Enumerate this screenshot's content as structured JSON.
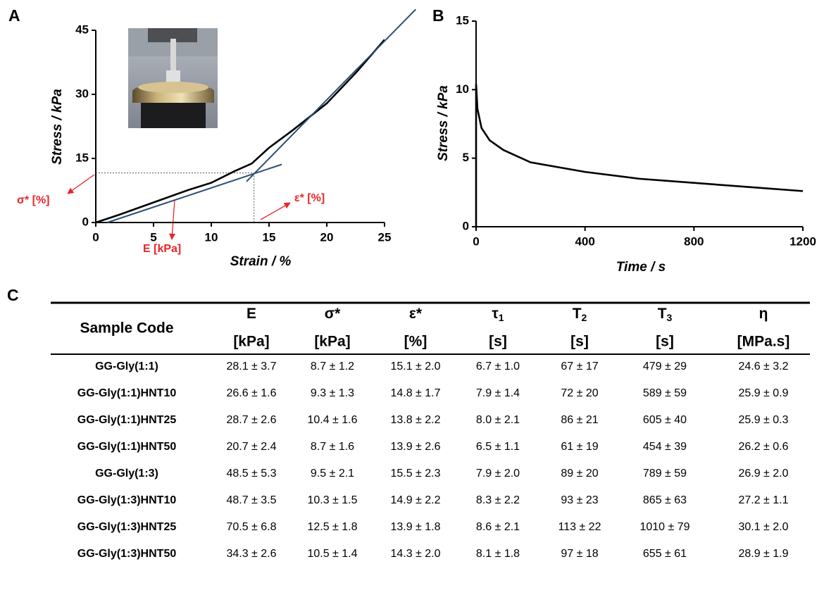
{
  "chart_data": [
    {
      "panel": "A",
      "type": "line",
      "xlabel": "Strain / %",
      "ylabel": "Stress / kPa",
      "xlim": [
        0,
        25
      ],
      "ylim": [
        0,
        45
      ],
      "xticks": [
        0,
        5,
        10,
        15,
        20,
        25
      ],
      "yticks": [
        0,
        15,
        30,
        45
      ],
      "series": [
        {
          "color": "#000000",
          "x": [
            0,
            2,
            5,
            8,
            10,
            12,
            13.5,
            15,
            17,
            20,
            22.5,
            25
          ],
          "values": [
            0,
            1.8,
            4.7,
            7.6,
            9.3,
            12,
            13.8,
            17.5,
            21.5,
            27.9,
            35,
            42.8
          ]
        },
        {
          "color": "#2e4d73",
          "x": [
            1,
            16.1
          ],
          "values": [
            0,
            13.6
          ]
        },
        {
          "color": "#2e4d73",
          "x": [
            13.05,
            27.7
          ],
          "values": [
            9.6,
            49.9
          ]
        }
      ],
      "guide": {
        "x": 13.7,
        "y": 11.6
      },
      "annotations": [
        "σ* [%]",
        "ε* [%]",
        "E [kPa]"
      ]
    },
    {
      "panel": "B",
      "type": "line",
      "xlabel": "Time / s",
      "ylabel": "Stress / kPa",
      "xlim": [
        0,
        1200
      ],
      "ylim": [
        0,
        15
      ],
      "xticks": [
        0,
        400,
        800,
        1200
      ],
      "yticks": [
        0,
        5,
        10,
        15
      ],
      "series": [
        {
          "color": "#000000",
          "x": [
            0,
            0,
            5,
            20,
            50,
            100,
            200,
            400,
            600,
            800,
            1000,
            1200
          ],
          "values": [
            0,
            10.4,
            8.6,
            7.2,
            6.3,
            5.6,
            4.7,
            4.0,
            3.5,
            3.2,
            2.9,
            2.6
          ]
        }
      ]
    }
  ],
  "table": {
    "panel": "C",
    "header": [
      "Sample Code",
      {
        "symbol": "E",
        "unit": "[kPa]"
      },
      {
        "symbol": "σ*",
        "unit": "[kPa]"
      },
      {
        "symbol": "ε*",
        "unit": "[%]"
      },
      {
        "symbol": "τ",
        "sub": "1",
        "unit": "[s]"
      },
      {
        "symbol": "T",
        "sub": "2",
        "unit": "[s]"
      },
      {
        "symbol": "T",
        "sub": "3",
        "unit": "[s]"
      },
      {
        "symbol": "η",
        "unit": "[MPa.s]"
      }
    ],
    "rows": [
      [
        "GG-Gly(1:1)",
        "28.1 ± 3.7",
        "8.7 ± 1.2",
        "15.1 ± 2.0",
        "6.7 ± 1.0",
        "67 ± 17",
        "479 ± 29",
        "24.6 ± 3.2"
      ],
      [
        "GG-Gly(1:1)HNT10",
        "26.6 ± 1.6",
        "9.3 ± 1.3",
        "14.8 ± 1.7",
        "7.9 ± 1.4",
        "72 ± 20",
        "589 ± 59",
        "25.9 ± 0.9"
      ],
      [
        "GG-Gly(1:1)HNT25",
        "28.7 ± 2.6",
        "10.4 ± 1.6",
        "13.8 ± 2.2",
        "8.0 ± 2.1",
        "86 ± 21",
        "605 ± 40",
        "25.9 ± 0.3"
      ],
      [
        "GG-Gly(1:1)HNT50",
        "20.7 ± 2.4",
        "8.7 ± 1.6",
        "13.9 ± 2.6",
        "6.5 ± 1.1",
        "61 ± 19",
        "454 ± 39",
        "26.2 ± 0.6"
      ],
      [
        "GG-Gly(1:3)",
        "48.5 ± 5.3",
        "9.5 ± 2.1",
        "15.5 ± 2.3",
        "7.9 ± 2.0",
        "89 ± 20",
        "789 ± 59",
        "26.9 ± 2.0"
      ],
      [
        "GG-Gly(1:3)HNT10",
        "48.7 ± 3.5",
        "10.3 ± 1.5",
        "14.9 ± 2.2",
        "8.3 ± 2.2",
        "93 ± 23",
        "865 ± 63",
        "27.2 ± 1.1"
      ],
      [
        "GG-Gly(1:3)HNT25",
        "70.5 ± 6.8",
        "12.5 ± 1.8",
        "13.9 ± 1.8",
        "8.6 ± 2.1",
        "113 ± 22",
        "1010 ± 79",
        "30.1 ± 2.0"
      ],
      [
        "GG-Gly(1:3)HNT50",
        "34.3 ± 2.6",
        "10.5 ± 1.4",
        "14.3 ± 2.0",
        "8.1 ± 1.8",
        "97 ± 18",
        "655 ± 61",
        "28.9 ± 1.9"
      ]
    ]
  }
}
